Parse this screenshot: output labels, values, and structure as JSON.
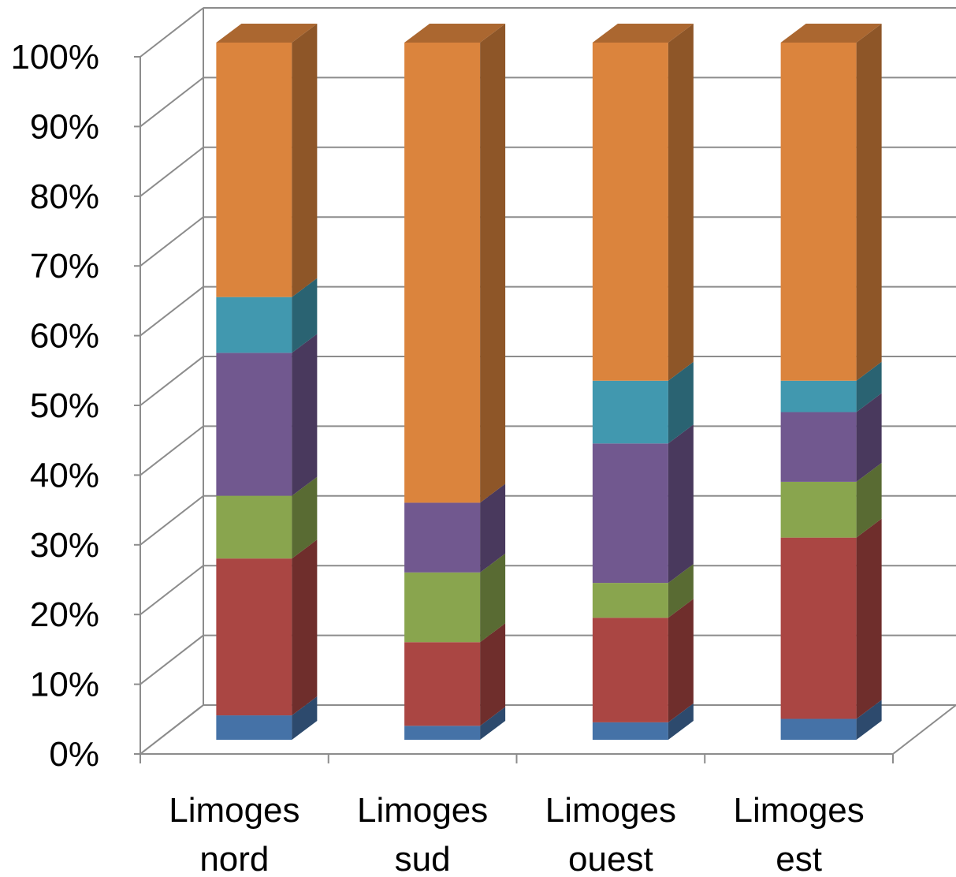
{
  "chart_data": {
    "type": "bar",
    "stacked": true,
    "percent": true,
    "three_d": true,
    "title": "",
    "xlabel": "",
    "ylabel": "",
    "ylim": [
      0,
      100
    ],
    "yticks": [
      "0%",
      "10%",
      "20%",
      "30%",
      "40%",
      "50%",
      "60%",
      "70%",
      "80%",
      "90%",
      "100%"
    ],
    "categories": [
      [
        "Limoges",
        "nord"
      ],
      [
        "Limoges",
        "sud"
      ],
      [
        "Limoges",
        "ouest"
      ],
      [
        "Limoges",
        "est"
      ]
    ],
    "series": [
      {
        "color": "#4572A7",
        "values": [
          3.5,
          2.0,
          2.5,
          3.0
        ]
      },
      {
        "color": "#AA4643",
        "values": [
          22.5,
          12.0,
          15.0,
          26.0
        ]
      },
      {
        "color": "#89A54E",
        "values": [
          9.0,
          10.0,
          5.0,
          8.0
        ]
      },
      {
        "color": "#71588F",
        "values": [
          20.5,
          10.0,
          20.0,
          10.0
        ]
      },
      {
        "color": "#4198AF",
        "values": [
          8.0,
          0.0,
          9.0,
          4.5
        ]
      },
      {
        "color": "#DB843D",
        "values": [
          36.5,
          66.0,
          48.5,
          48.5
        ]
      }
    ],
    "grid": true,
    "legend": "none"
  }
}
